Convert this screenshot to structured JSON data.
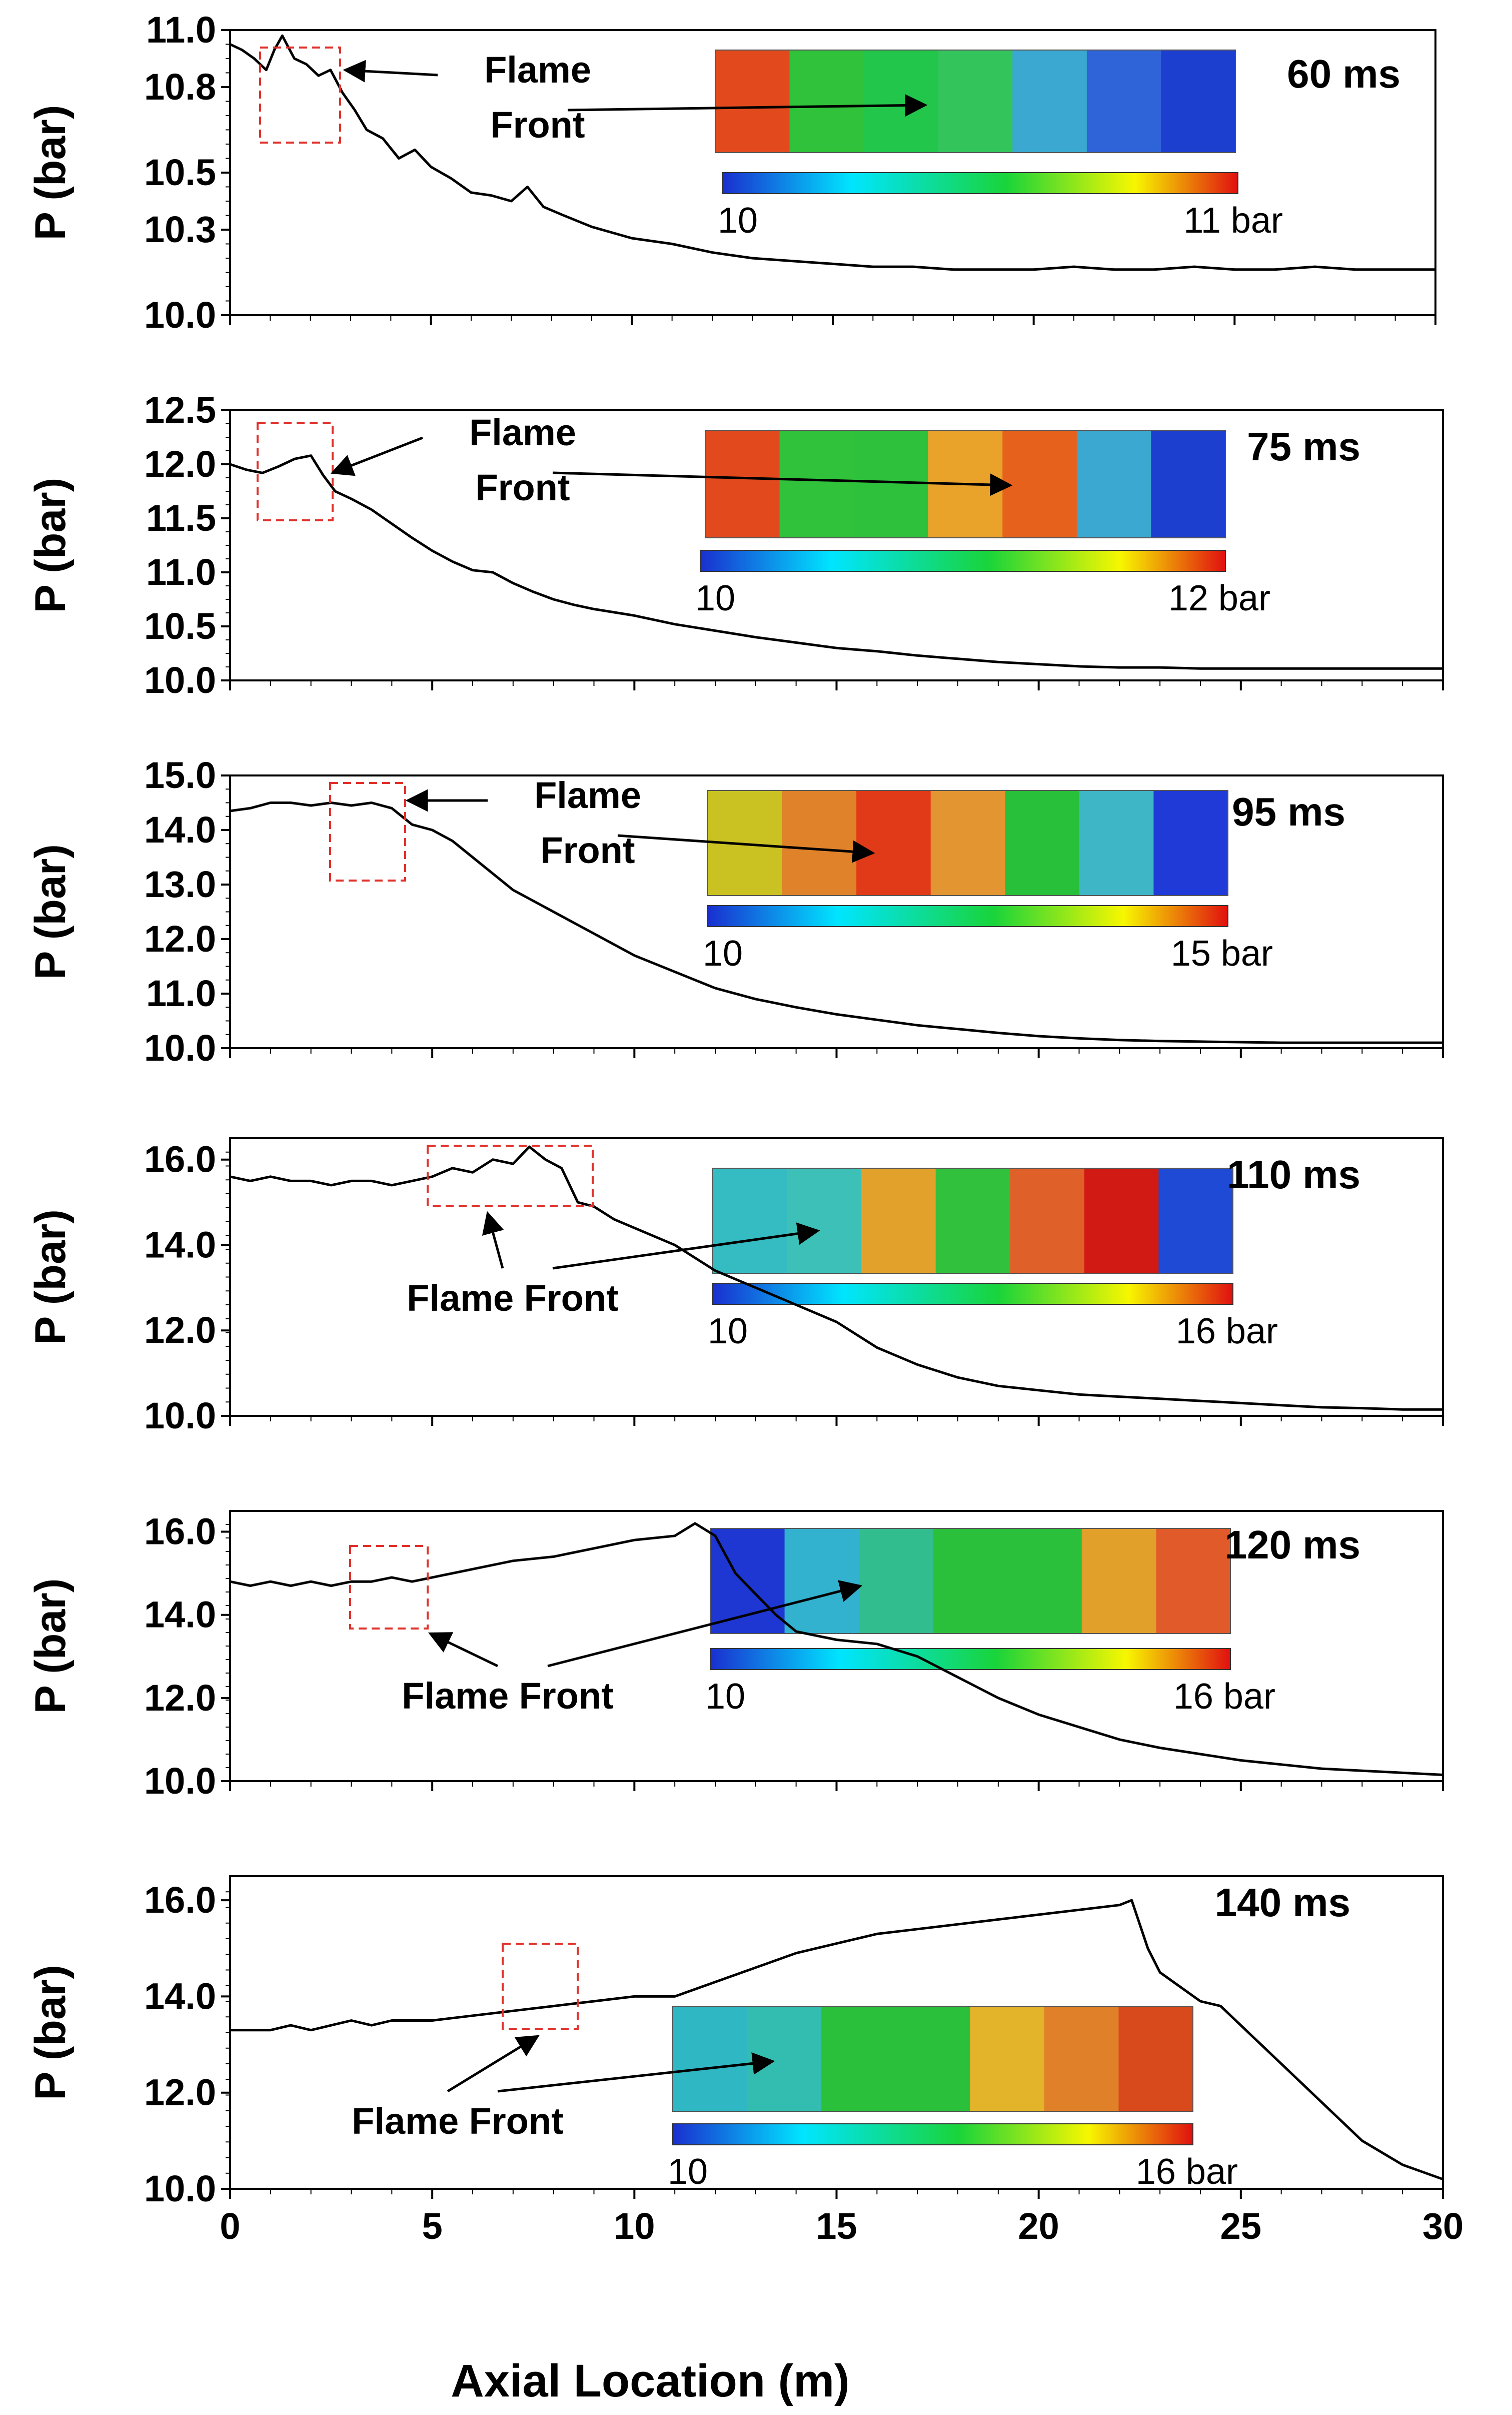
{
  "chart_data": [
    {
      "type": "line",
      "time_label": "60 ms",
      "ylabel": "P (bar)",
      "ylim": [
        10.0,
        11.0
      ],
      "yticks": [
        "10.0",
        "10.3",
        "10.5",
        "10.8",
        "11.0"
      ],
      "xlim": [
        0,
        30
      ],
      "points": [
        [
          0,
          10.95
        ],
        [
          0.3,
          10.93
        ],
        [
          0.6,
          10.9
        ],
        [
          0.9,
          10.86
        ],
        [
          1.1,
          10.93
        ],
        [
          1.3,
          10.98
        ],
        [
          1.6,
          10.9
        ],
        [
          1.9,
          10.88
        ],
        [
          2.2,
          10.84
        ],
        [
          2.5,
          10.86
        ],
        [
          2.8,
          10.78
        ],
        [
          3.1,
          10.72
        ],
        [
          3.4,
          10.65
        ],
        [
          3.8,
          10.62
        ],
        [
          4.2,
          10.55
        ],
        [
          4.6,
          10.58
        ],
        [
          5.0,
          10.52
        ],
        [
          5.5,
          10.48
        ],
        [
          6.0,
          10.43
        ],
        [
          6.5,
          10.42
        ],
        [
          7.0,
          10.4
        ],
        [
          7.4,
          10.45
        ],
        [
          7.8,
          10.38
        ],
        [
          8.3,
          10.35
        ],
        [
          9,
          10.31
        ],
        [
          10,
          10.27
        ],
        [
          11,
          10.25
        ],
        [
          12,
          10.22
        ],
        [
          13,
          10.2
        ],
        [
          14,
          10.19
        ],
        [
          15,
          10.18
        ],
        [
          16,
          10.17
        ],
        [
          17,
          10.17
        ],
        [
          18,
          10.16
        ],
        [
          19,
          10.16
        ],
        [
          20,
          10.16
        ],
        [
          21,
          10.17
        ],
        [
          22,
          10.16
        ],
        [
          23,
          10.16
        ],
        [
          24,
          10.17
        ],
        [
          25,
          10.16
        ],
        [
          26,
          10.16
        ],
        [
          27,
          10.17
        ],
        [
          28,
          10.16
        ],
        [
          29,
          10.16
        ],
        [
          30,
          10.16
        ]
      ],
      "colorbar_min": "10",
      "colorbar_max": "11 bar",
      "annotation": "Flame Front"
    },
    {
      "type": "line",
      "time_label": "75 ms",
      "ylabel": "P (bar)",
      "ylim": [
        10.0,
        12.5
      ],
      "yticks": [
        "10.0",
        "10.5",
        "11.0",
        "11.5",
        "12.0",
        "12.5"
      ],
      "xlim": [
        0,
        30
      ],
      "points": [
        [
          0,
          12.0
        ],
        [
          0.4,
          11.95
        ],
        [
          0.8,
          11.92
        ],
        [
          1.2,
          11.98
        ],
        [
          1.6,
          12.05
        ],
        [
          2.0,
          12.08
        ],
        [
          2.3,
          11.9
        ],
        [
          2.6,
          11.75
        ],
        [
          3.0,
          11.68
        ],
        [
          3.5,
          11.58
        ],
        [
          4.0,
          11.45
        ],
        [
          4.5,
          11.32
        ],
        [
          5.0,
          11.2
        ],
        [
          5.5,
          11.1
        ],
        [
          6.0,
          11.02
        ],
        [
          6.5,
          11.0
        ],
        [
          7.0,
          10.9
        ],
        [
          7.5,
          10.82
        ],
        [
          8.0,
          10.75
        ],
        [
          8.5,
          10.7
        ],
        [
          9.0,
          10.66
        ],
        [
          10,
          10.6
        ],
        [
          11,
          10.52
        ],
        [
          12,
          10.46
        ],
        [
          13,
          10.4
        ],
        [
          14,
          10.35
        ],
        [
          15,
          10.3
        ],
        [
          16,
          10.27
        ],
        [
          17,
          10.23
        ],
        [
          18,
          10.2
        ],
        [
          19,
          10.17
        ],
        [
          20,
          10.15
        ],
        [
          21,
          10.13
        ],
        [
          22,
          10.12
        ],
        [
          23,
          10.12
        ],
        [
          24,
          10.11
        ],
        [
          25,
          10.11
        ],
        [
          26,
          10.11
        ],
        [
          27,
          10.11
        ],
        [
          28,
          10.11
        ],
        [
          29,
          10.11
        ],
        [
          30,
          10.11
        ]
      ],
      "colorbar_min": "10",
      "colorbar_max": "12 bar",
      "annotation": "Flame Front"
    },
    {
      "type": "line",
      "time_label": "95 ms",
      "ylabel": "P (bar)",
      "ylim": [
        10.0,
        15.0
      ],
      "yticks": [
        "10.0",
        "11.0",
        "12.0",
        "13.0",
        "14.0",
        "15.0"
      ],
      "xlim": [
        0,
        30
      ],
      "points": [
        [
          0,
          14.35
        ],
        [
          0.5,
          14.4
        ],
        [
          1.0,
          14.5
        ],
        [
          1.5,
          14.5
        ],
        [
          2.0,
          14.45
        ],
        [
          2.5,
          14.5
        ],
        [
          3.0,
          14.45
        ],
        [
          3.5,
          14.5
        ],
        [
          4.0,
          14.4
        ],
        [
          4.5,
          14.1
        ],
        [
          5.0,
          14.0
        ],
        [
          5.5,
          13.8
        ],
        [
          6.0,
          13.5
        ],
        [
          6.5,
          13.2
        ],
        [
          7.0,
          12.9
        ],
        [
          7.5,
          12.7
        ],
        [
          8.0,
          12.5
        ],
        [
          8.5,
          12.3
        ],
        [
          9.0,
          12.1
        ],
        [
          10,
          11.7
        ],
        [
          11,
          11.4
        ],
        [
          12,
          11.1
        ],
        [
          13,
          10.9
        ],
        [
          14,
          10.75
        ],
        [
          15,
          10.62
        ],
        [
          16,
          10.52
        ],
        [
          17,
          10.42
        ],
        [
          18,
          10.35
        ],
        [
          19,
          10.28
        ],
        [
          20,
          10.22
        ],
        [
          21,
          10.18
        ],
        [
          22,
          10.15
        ],
        [
          23,
          10.13
        ],
        [
          24,
          10.12
        ],
        [
          25,
          10.11
        ],
        [
          26,
          10.1
        ],
        [
          27,
          10.1
        ],
        [
          28,
          10.1
        ],
        [
          29,
          10.1
        ],
        [
          30,
          10.1
        ]
      ],
      "colorbar_min": "10",
      "colorbar_max": "15 bar",
      "annotation": "Flame Front"
    },
    {
      "type": "line",
      "time_label": "110 ms",
      "ylabel": "P (bar)",
      "ylim": [
        10.0,
        16.5
      ],
      "yticks": [
        "10.0",
        "12.0",
        "14.0",
        "16.0"
      ],
      "xlim": [
        0,
        30
      ],
      "points": [
        [
          0,
          15.6
        ],
        [
          0.5,
          15.5
        ],
        [
          1,
          15.6
        ],
        [
          1.5,
          15.5
        ],
        [
          2,
          15.5
        ],
        [
          2.5,
          15.4
        ],
        [
          3,
          15.5
        ],
        [
          3.5,
          15.5
        ],
        [
          4,
          15.4
        ],
        [
          4.5,
          15.5
        ],
        [
          5,
          15.6
        ],
        [
          5.5,
          15.8
        ],
        [
          6,
          15.7
        ],
        [
          6.5,
          16.0
        ],
        [
          7,
          15.9
        ],
        [
          7.4,
          16.3
        ],
        [
          7.8,
          16.0
        ],
        [
          8.2,
          15.8
        ],
        [
          8.6,
          15.0
        ],
        [
          9,
          14.9
        ],
        [
          9.5,
          14.6
        ],
        [
          10,
          14.4
        ],
        [
          11,
          14.0
        ],
        [
          12,
          13.4
        ],
        [
          13,
          13.0
        ],
        [
          14,
          12.6
        ],
        [
          15,
          12.2
        ],
        [
          16,
          11.6
        ],
        [
          17,
          11.2
        ],
        [
          18,
          10.9
        ],
        [
          19,
          10.7
        ],
        [
          20,
          10.6
        ],
        [
          21,
          10.5
        ],
        [
          22,
          10.45
        ],
        [
          23,
          10.4
        ],
        [
          24,
          10.35
        ],
        [
          25,
          10.3
        ],
        [
          26,
          10.25
        ],
        [
          27,
          10.2
        ],
        [
          28,
          10.18
        ],
        [
          29,
          10.15
        ],
        [
          30,
          10.15
        ]
      ],
      "colorbar_min": "10",
      "colorbar_max": "16 bar",
      "annotation": "Flame Front"
    },
    {
      "type": "line",
      "time_label": "120 ms",
      "ylabel": "P (bar)",
      "ylim": [
        10.0,
        16.5
      ],
      "yticks": [
        "10.0",
        "12.0",
        "14.0",
        "16.0"
      ],
      "xlim": [
        0,
        30
      ],
      "points": [
        [
          0,
          14.8
        ],
        [
          0.5,
          14.7
        ],
        [
          1,
          14.8
        ],
        [
          1.5,
          14.7
        ],
        [
          2,
          14.8
        ],
        [
          2.5,
          14.7
        ],
        [
          3,
          14.8
        ],
        [
          3.5,
          14.8
        ],
        [
          4,
          14.9
        ],
        [
          4.5,
          14.8
        ],
        [
          5,
          14.9
        ],
        [
          6,
          15.1
        ],
        [
          7,
          15.3
        ],
        [
          8,
          15.4
        ],
        [
          9,
          15.6
        ],
        [
          10,
          15.8
        ],
        [
          11,
          15.9
        ],
        [
          11.5,
          16.2
        ],
        [
          12,
          15.9
        ],
        [
          12.5,
          15.0
        ],
        [
          13,
          14.5
        ],
        [
          13.5,
          14.0
        ],
        [
          14,
          13.6
        ],
        [
          15,
          13.4
        ],
        [
          16,
          13.3
        ],
        [
          17,
          13.0
        ],
        [
          18,
          12.5
        ],
        [
          19,
          12.0
        ],
        [
          20,
          11.6
        ],
        [
          21,
          11.3
        ],
        [
          22,
          11.0
        ],
        [
          23,
          10.8
        ],
        [
          24,
          10.65
        ],
        [
          25,
          10.5
        ],
        [
          26,
          10.4
        ],
        [
          27,
          10.3
        ],
        [
          28,
          10.25
        ],
        [
          29,
          10.2
        ],
        [
          30,
          10.15
        ]
      ],
      "colorbar_min": "10",
      "colorbar_max": "16 bar",
      "annotation": "Flame Front"
    },
    {
      "type": "line",
      "time_label": "140 ms",
      "ylabel": "P (bar)",
      "xlabel": "Axial Location (m)",
      "ylim": [
        10.0,
        16.5
      ],
      "yticks": [
        "10.0",
        "12.0",
        "14.0",
        "16.0"
      ],
      "xlim": [
        0,
        30
      ],
      "xticks": [
        "0",
        "5",
        "10",
        "15",
        "20",
        "25",
        "30"
      ],
      "points": [
        [
          0,
          13.3
        ],
        [
          0.5,
          13.3
        ],
        [
          1,
          13.3
        ],
        [
          1.5,
          13.4
        ],
        [
          2,
          13.3
        ],
        [
          2.5,
          13.4
        ],
        [
          3,
          13.5
        ],
        [
          3.5,
          13.4
        ],
        [
          4,
          13.5
        ],
        [
          4.5,
          13.5
        ],
        [
          5,
          13.5
        ],
        [
          6,
          13.6
        ],
        [
          7,
          13.7
        ],
        [
          8,
          13.8
        ],
        [
          9,
          13.9
        ],
        [
          10,
          14.0
        ],
        [
          11,
          14.0
        ],
        [
          12,
          14.3
        ],
        [
          13,
          14.6
        ],
        [
          14,
          14.9
        ],
        [
          15,
          15.1
        ],
        [
          16,
          15.3
        ],
        [
          17,
          15.4
        ],
        [
          18,
          15.5
        ],
        [
          19,
          15.6
        ],
        [
          20,
          15.7
        ],
        [
          21,
          15.8
        ],
        [
          22,
          15.9
        ],
        [
          22.3,
          16.0
        ],
        [
          22.7,
          15.0
        ],
        [
          23,
          14.5
        ],
        [
          23.5,
          14.2
        ],
        [
          24,
          13.9
        ],
        [
          24.5,
          13.8
        ],
        [
          25,
          13.4
        ],
        [
          26,
          12.6
        ],
        [
          27,
          11.8
        ],
        [
          28,
          11.0
        ],
        [
          29,
          10.5
        ],
        [
          30,
          10.2
        ]
      ],
      "colorbar_min": "10",
      "colorbar_max": "16 bar",
      "annotation": "Flame Front"
    }
  ],
  "colors": {
    "line": "#000000",
    "box": "#e0302a",
    "colormap": [
      "#1a2fcf",
      "#00e5ff",
      "#19d43a",
      "#f7f700",
      "#e01010"
    ]
  }
}
